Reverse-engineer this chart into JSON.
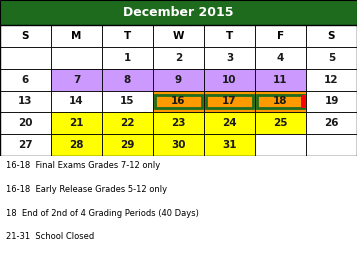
{
  "title": "December 2015",
  "title_bg": "#1e6b1e",
  "title_color": "white",
  "header_days": [
    "S",
    "M",
    "T",
    "W",
    "T",
    "F",
    "S"
  ],
  "weeks": [
    [
      "",
      "",
      "1",
      "2",
      "3",
      "4",
      "5"
    ],
    [
      "6",
      "7",
      "8",
      "9",
      "10",
      "11",
      "12"
    ],
    [
      "13",
      "14",
      "15",
      "16",
      "17",
      "18",
      "19"
    ],
    [
      "20",
      "21",
      "22",
      "23",
      "24",
      "25",
      "26"
    ],
    [
      "27",
      "28",
      "29",
      "30",
      "31",
      "",
      ""
    ]
  ],
  "cell_colors": {
    "7": "#cc99ff",
    "8": "#cc99ff",
    "9": "#cc99ff",
    "10": "#cc99ff",
    "11": "#cc99ff",
    "16": "#ff9900",
    "17": "#ff9900",
    "18": "#ff9900",
    "21": "#ffff00",
    "22": "#ffff00",
    "23": "#ffff00",
    "24": "#ffff00",
    "25": "#ffff00",
    "28": "#ffff00",
    "29": "#ffff00",
    "30": "#ffff00",
    "31": "#ffff00"
  },
  "green_border_cells": [
    "16",
    "17",
    "18"
  ],
  "red_border_cell": "18",
  "legend": [
    "16-18  Final Exams Grades 7-12 only",
    "16-18  Early Release Grades 5-12 only",
    "18  End of 2nd of 4 Grading Periods (40 Days)",
    "21-31  School Closed"
  ],
  "figwidth": 3.57,
  "figheight": 2.61,
  "dpi": 100
}
